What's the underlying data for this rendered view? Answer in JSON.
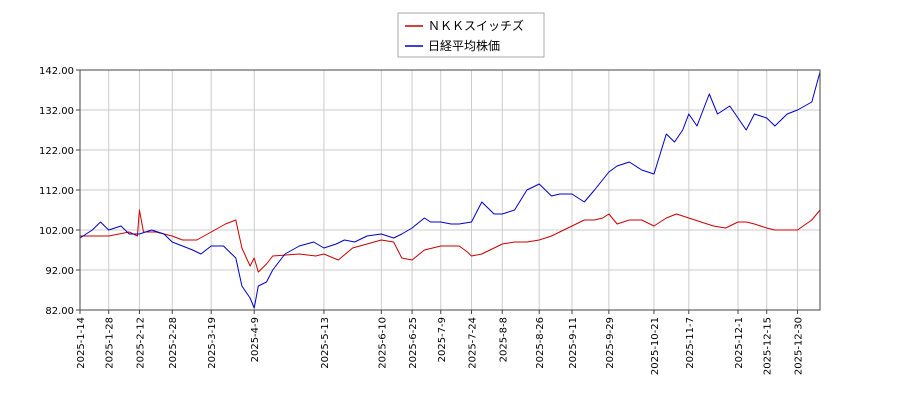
{
  "chart_data": {
    "type": "line",
    "title": "",
    "xlabel": "",
    "ylabel": "",
    "ylim": [
      82,
      142
    ],
    "y_ticks": [
      "142.00",
      "132.00",
      "122.00",
      "112.00",
      "102.00",
      "92.00",
      "82.00"
    ],
    "x_ticks": [
      "2025-1-14",
      "2025-1-28",
      "2025-2-12",
      "2025-2-28",
      "2025-3-19",
      "2025-4-9",
      "2025-5-13",
      "2025-6-10",
      "2025-6-25",
      "2025-7-9",
      "2025-7-24",
      "2025-8-8",
      "2025-8-26",
      "2025-9-11",
      "2025-9-29",
      "2025-10-21",
      "2025-11-7",
      "2025-12-1",
      "2025-12-15",
      "2025-12-30"
    ],
    "grid": true,
    "legend_position": "top-center",
    "series": [
      {
        "name": "ＮＫＫスイッチズ",
        "color": "#cc0000",
        "x": [
          "2025-1-14",
          "2025-1-28",
          "2025-2-7",
          "2025-2-11",
          "2025-2-12",
          "2025-2-14",
          "2025-2-20",
          "2025-2-28",
          "2025-3-5",
          "2025-3-12",
          "2025-3-19",
          "2025-3-26",
          "2025-3-31",
          "2025-4-3",
          "2025-4-7",
          "2025-4-9",
          "2025-4-11",
          "2025-4-15",
          "2025-4-18",
          "2025-5-1",
          "2025-5-9",
          "2025-5-13",
          "2025-5-20",
          "2025-5-27",
          "2025-6-3",
          "2025-6-10",
          "2025-6-16",
          "2025-6-20",
          "2025-6-25",
          "2025-7-1",
          "2025-7-9",
          "2025-7-14",
          "2025-7-18",
          "2025-7-22",
          "2025-7-24",
          "2025-7-29",
          "2025-8-4",
          "2025-8-8",
          "2025-8-14",
          "2025-8-20",
          "2025-8-26",
          "2025-9-1",
          "2025-9-5",
          "2025-9-11",
          "2025-9-17",
          "2025-9-22",
          "2025-9-26",
          "2025-9-29",
          "2025-10-3",
          "2025-10-9",
          "2025-10-15",
          "2025-10-21",
          "2025-10-27",
          "2025-11-1",
          "2025-11-7",
          "2025-11-13",
          "2025-11-19",
          "2025-11-25",
          "2025-12-1",
          "2025-12-5",
          "2025-12-9",
          "2025-12-15",
          "2025-12-19",
          "2025-12-25",
          "2025-12-30",
          "2026-1-6",
          "2026-1-10"
        ],
        "values": [
          100.5,
          100.5,
          101.5,
          100.5,
          107,
          101.5,
          101.5,
          100.5,
          99.5,
          99.5,
          101.5,
          103.5,
          104.5,
          97.5,
          93,
          95,
          91.5,
          93.5,
          95.5,
          96,
          95.5,
          96,
          94.5,
          97.5,
          98.5,
          99.5,
          99,
          95,
          94.5,
          97,
          98,
          98,
          98,
          96.5,
          95.5,
          96,
          97.5,
          98.5,
          99,
          99,
          99.5,
          100.5,
          101.5,
          103,
          104.5,
          104.5,
          105,
          106,
          103.5,
          104.5,
          104.5,
          103,
          105,
          106,
          105,
          104,
          103,
          102.5,
          104,
          104,
          103.5,
          102.5,
          102,
          102,
          102,
          104.5,
          107
        ]
      },
      {
        "name": "日経平均株価",
        "color": "#0000cc",
        "x": [
          "2025-1-14",
          "2025-1-20",
          "2025-1-24",
          "2025-1-28",
          "2025-2-3",
          "2025-2-7",
          "2025-2-12",
          "2025-2-18",
          "2025-2-24",
          "2025-2-28",
          "2025-3-5",
          "2025-3-10",
          "2025-3-14",
          "2025-3-19",
          "2025-3-25",
          "2025-3-31",
          "2025-4-3",
          "2025-4-7",
          "2025-4-9",
          "2025-4-11",
          "2025-4-15",
          "2025-4-18",
          "2025-4-24",
          "2025-5-1",
          "2025-5-8",
          "2025-5-13",
          "2025-5-19",
          "2025-5-23",
          "2025-5-28",
          "2025-6-3",
          "2025-6-10",
          "2025-6-16",
          "2025-6-20",
          "2025-6-25",
          "2025-7-1",
          "2025-7-4",
          "2025-7-9",
          "2025-7-14",
          "2025-7-18",
          "2025-7-24",
          "2025-7-29",
          "2025-8-4",
          "2025-8-8",
          "2025-8-14",
          "2025-8-20",
          "2025-8-26",
          "2025-9-1",
          "2025-9-5",
          "2025-9-11",
          "2025-9-17",
          "2025-9-22",
          "2025-9-29",
          "2025-10-3",
          "2025-10-9",
          "2025-10-15",
          "2025-10-21",
          "2025-10-27",
          "2025-10-31",
          "2025-11-4",
          "2025-11-7",
          "2025-11-11",
          "2025-11-17",
          "2025-11-21",
          "2025-11-27",
          "2025-12-1",
          "2025-12-5",
          "2025-12-9",
          "2025-12-15",
          "2025-12-19",
          "2025-12-25",
          "2025-12-30",
          "2026-1-6",
          "2026-1-10"
        ],
        "values": [
          100,
          102,
          104,
          102,
          103,
          101,
          101,
          102,
          101,
          99,
          98,
          97,
          96,
          98,
          98,
          95,
          88,
          85,
          82.5,
          88,
          89,
          92,
          96,
          98,
          99,
          97.5,
          98.5,
          99.5,
          99,
          100.5,
          101,
          100,
          101,
          102.5,
          105,
          104,
          104,
          103.5,
          103.5,
          104,
          109,
          106,
          106,
          107,
          112,
          113.5,
          110.5,
          111,
          111,
          109,
          112,
          116.5,
          118,
          119,
          117,
          116,
          126,
          124,
          127,
          131,
          128,
          136,
          131,
          133,
          130,
          127,
          131,
          130,
          128,
          131,
          132,
          134,
          141.5
        ]
      }
    ]
  }
}
